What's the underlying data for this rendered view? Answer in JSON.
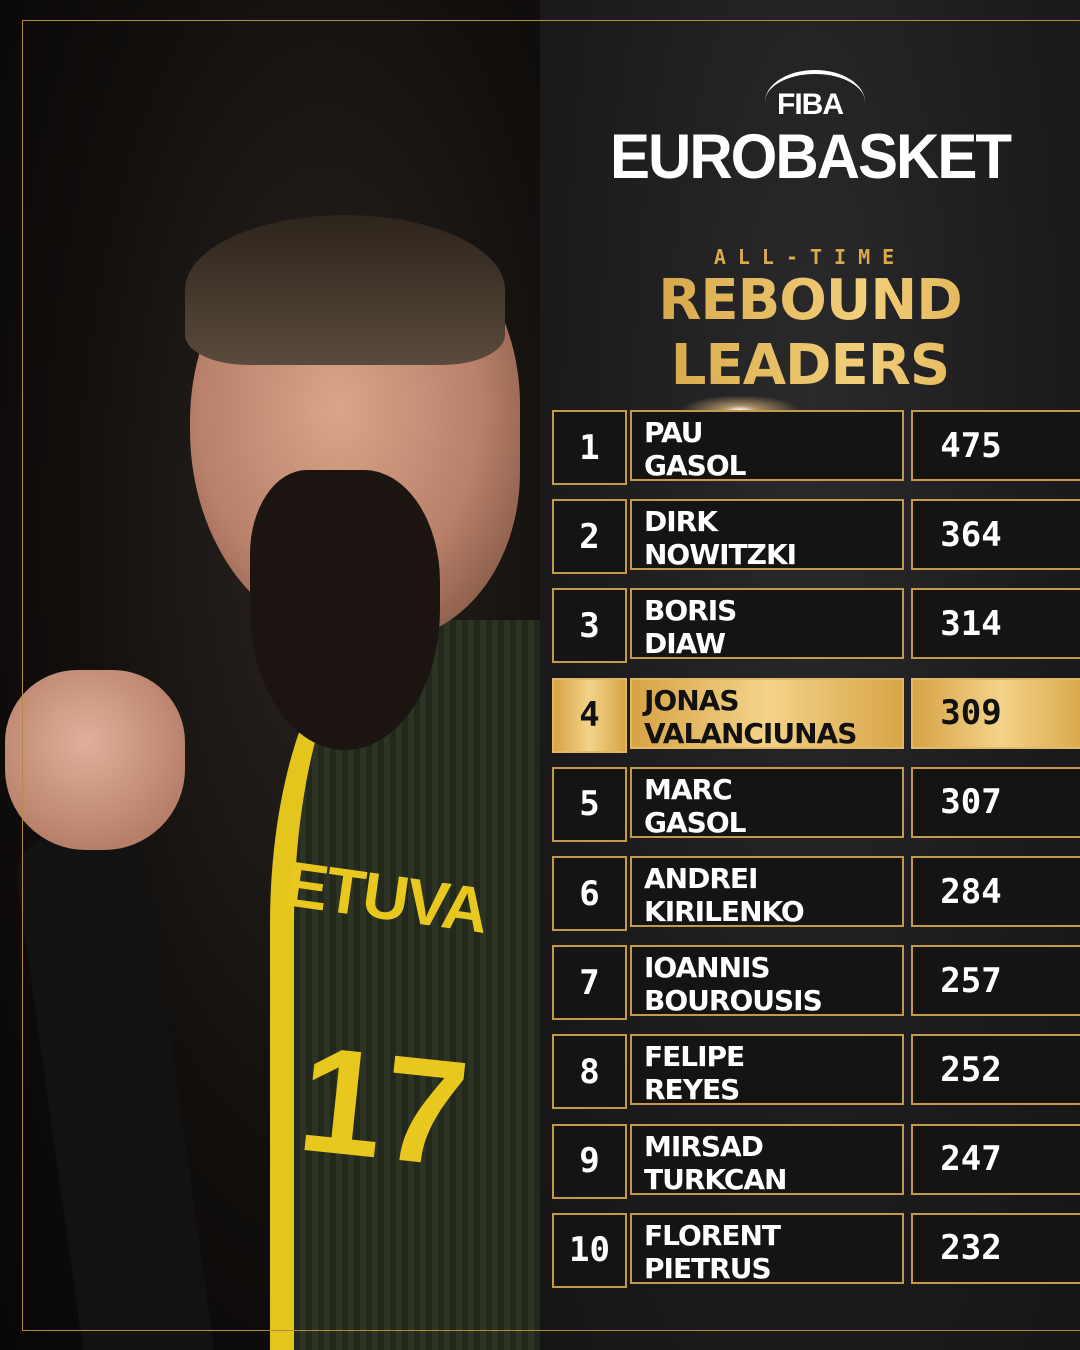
{
  "photo": {
    "jersey_text": "ETUVA",
    "jersey_number": "17"
  },
  "logo": {
    "top": "FIBA",
    "main": "EUROBASKET"
  },
  "header": {
    "subtitle": "ALL-TIME",
    "title": "REBOUND LEADERS"
  },
  "colors": {
    "gold": "#c49a4a",
    "panel": "#1c1c1e",
    "highlight": "#f3d38a"
  },
  "leaders": [
    {
      "rank": "1",
      "first": "PAU",
      "last": "GASOL",
      "value": "475"
    },
    {
      "rank": "2",
      "first": "DIRK",
      "last": "NOWITZKI",
      "value": "364"
    },
    {
      "rank": "3",
      "first": "BORIS",
      "last": "DIAW",
      "value": "314"
    },
    {
      "rank": "4",
      "first": "JONAS",
      "last": "VALANCIUNAS",
      "value": "309",
      "highlighted": true
    },
    {
      "rank": "5",
      "first": "MARC",
      "last": "GASOL",
      "value": "307"
    },
    {
      "rank": "6",
      "first": "ANDREI",
      "last": "KIRILENKO",
      "value": "284"
    },
    {
      "rank": "7",
      "first": "IOANNIS",
      "last": "BOUROUSIS",
      "value": "257"
    },
    {
      "rank": "8",
      "first": "FELIPE",
      "last": "REYES",
      "value": "252"
    },
    {
      "rank": "9",
      "first": "MIRSAD",
      "last": "TURKCAN",
      "value": "247"
    },
    {
      "rank": "10",
      "first": "FLORENT",
      "last": "PIETRUS",
      "value": "232"
    }
  ]
}
